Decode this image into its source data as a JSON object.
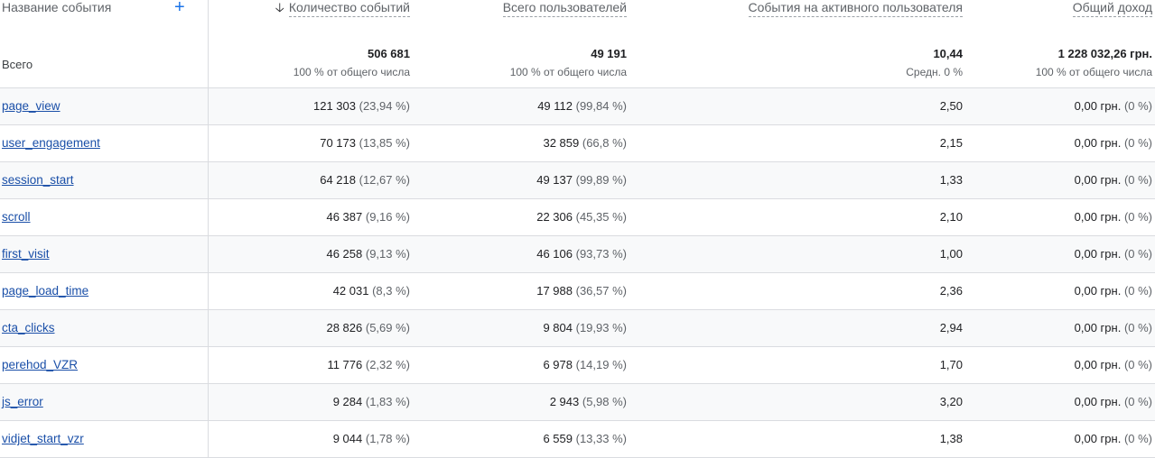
{
  "header": {
    "dimension": "Название события",
    "add_icon": "plus-icon",
    "sort_icon": "arrow-down-icon",
    "columns": [
      "Количество событий",
      "Всего пользователей",
      "События на активного пользователя",
      "Общий доход"
    ]
  },
  "totals": {
    "label": "Всего",
    "values": [
      "506 681",
      "49 191",
      "10,44",
      "1 228 032,26 грн."
    ],
    "subs": [
      "100 % от общего числа",
      "100 % от общего числа",
      "Средн. 0 %",
      "100 % от общего числа"
    ]
  },
  "rows": [
    {
      "name": "page_view",
      "events": "121 303",
      "events_pct": "(23,94 %)",
      "users": "49 112",
      "users_pct": "(99,84 %)",
      "per_user": "2,50",
      "revenue": "0,00 грн.",
      "revenue_pct": "(0 %)"
    },
    {
      "name": "user_engagement",
      "events": "70 173",
      "events_pct": "(13,85 %)",
      "users": "32 859",
      "users_pct": "(66,8 %)",
      "per_user": "2,15",
      "revenue": "0,00 грн.",
      "revenue_pct": "(0 %)"
    },
    {
      "name": "session_start",
      "events": "64 218",
      "events_pct": "(12,67 %)",
      "users": "49 137",
      "users_pct": "(99,89 %)",
      "per_user": "1,33",
      "revenue": "0,00 грн.",
      "revenue_pct": "(0 %)"
    },
    {
      "name": "scroll",
      "events": "46 387",
      "events_pct": "(9,16 %)",
      "users": "22 306",
      "users_pct": "(45,35 %)",
      "per_user": "2,10",
      "revenue": "0,00 грн.",
      "revenue_pct": "(0 %)"
    },
    {
      "name": "first_visit",
      "events": "46 258",
      "events_pct": "(9,13 %)",
      "users": "46 106",
      "users_pct": "(93,73 %)",
      "per_user": "1,00",
      "revenue": "0,00 грн.",
      "revenue_pct": "(0 %)"
    },
    {
      "name": "page_load_time",
      "events": "42 031",
      "events_pct": "(8,3 %)",
      "users": "17 988",
      "users_pct": "(36,57 %)",
      "per_user": "2,36",
      "revenue": "0,00 грн.",
      "revenue_pct": "(0 %)"
    },
    {
      "name": "cta_clicks",
      "events": "28 826",
      "events_pct": "(5,69 %)",
      "users": "9 804",
      "users_pct": "(19,93 %)",
      "per_user": "2,94",
      "revenue": "0,00 грн.",
      "revenue_pct": "(0 %)"
    },
    {
      "name": "perehod_VZR",
      "events": "11 776",
      "events_pct": "(2,32 %)",
      "users": "6 978",
      "users_pct": "(14,19 %)",
      "per_user": "1,70",
      "revenue": "0,00 грн.",
      "revenue_pct": "(0 %)"
    },
    {
      "name": "js_error",
      "events": "9 284",
      "events_pct": "(1,83 %)",
      "users": "2 943",
      "users_pct": "(5,98 %)",
      "per_user": "3,20",
      "revenue": "0,00 грн.",
      "revenue_pct": "(0 %)"
    },
    {
      "name": "vidjet_start_vzr",
      "events": "9 044",
      "events_pct": "(1,78 %)",
      "users": "6 559",
      "users_pct": "(13,33 %)",
      "per_user": "1,38",
      "revenue": "0,00 грн.",
      "revenue_pct": "(0 %)"
    }
  ]
}
